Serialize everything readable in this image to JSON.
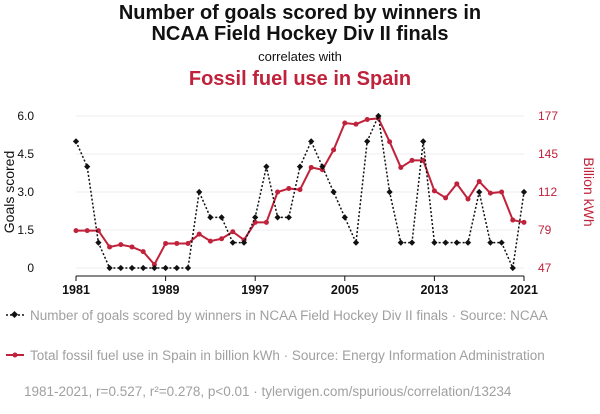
{
  "title_line1": "Number of goals scored by winners in",
  "title_line2": "NCAA Field Hockey Div II finals",
  "correlates": "correlates with",
  "title_series2": "Fossil fuel use in Spain",
  "legend": [
    {
      "text": "Number of goals scored by winners in NCAA Field Hockey Div II finals · Source: NCAA",
      "color": "#111111"
    },
    {
      "text": "Total fossil fuel use in Spain in billion kWh · Source: Energy Information Administration",
      "color": "#c0223b"
    }
  ],
  "footer": "1981-2021, r=0.527, r²=0.278, p<0.01 · tylervigen.com/spurious/correlation/13234",
  "chart_data": {
    "type": "line",
    "title": "Number of goals scored by winners in NCAA Field Hockey Div II finals correlates with Fossil fuel use in Spain",
    "xlabel": "",
    "x": [
      1981,
      1982,
      1983,
      1984,
      1985,
      1986,
      1987,
      1988,
      1989,
      1990,
      1991,
      1992,
      1993,
      1994,
      1995,
      1996,
      1997,
      1998,
      1999,
      2000,
      2001,
      2002,
      2003,
      2004,
      2005,
      2006,
      2007,
      2008,
      2009,
      2010,
      2011,
      2012,
      2013,
      2014,
      2015,
      2016,
      2017,
      2018,
      2019,
      2020,
      2021
    ],
    "xticks": [
      "1981",
      "1989",
      "1997",
      "2005",
      "2013",
      "2021"
    ],
    "series": [
      {
        "name": "Goals scored",
        "axis": "left",
        "ylabel": "Goals scored",
        "color": "#111111",
        "ylim": [
          0,
          6
        ],
        "yticks": [
          "0",
          "1.5",
          "3.0",
          "4.5",
          "6.0"
        ],
        "values": [
          5,
          4,
          1,
          0,
          0,
          0,
          0,
          0,
          0,
          0,
          0,
          3,
          2,
          2,
          1,
          1,
          2,
          4,
          2,
          2,
          4,
          5,
          4,
          3,
          2,
          1,
          5,
          6,
          3,
          1,
          1,
          5,
          1,
          1,
          1,
          1,
          3,
          1,
          1,
          0,
          3
        ]
      },
      {
        "name": "Fossil fuel use in Spain (billion kWh)",
        "axis": "right",
        "ylabel": "Billion kWh",
        "color": "#c0223b",
        "ylim": [
          47,
          177
        ],
        "yticks": [
          "47",
          "79",
          "112",
          "145",
          "177"
        ],
        "values": [
          79,
          79,
          79,
          65,
          67,
          65,
          61,
          50,
          68,
          68,
          68,
          76,
          70,
          72,
          78,
          71,
          86,
          86,
          112,
          115,
          114,
          133,
          131,
          148,
          171,
          170,
          174,
          175,
          155,
          133,
          139,
          139,
          113,
          107,
          119,
          106,
          121,
          111,
          112,
          88,
          86
        ]
      }
    ]
  }
}
